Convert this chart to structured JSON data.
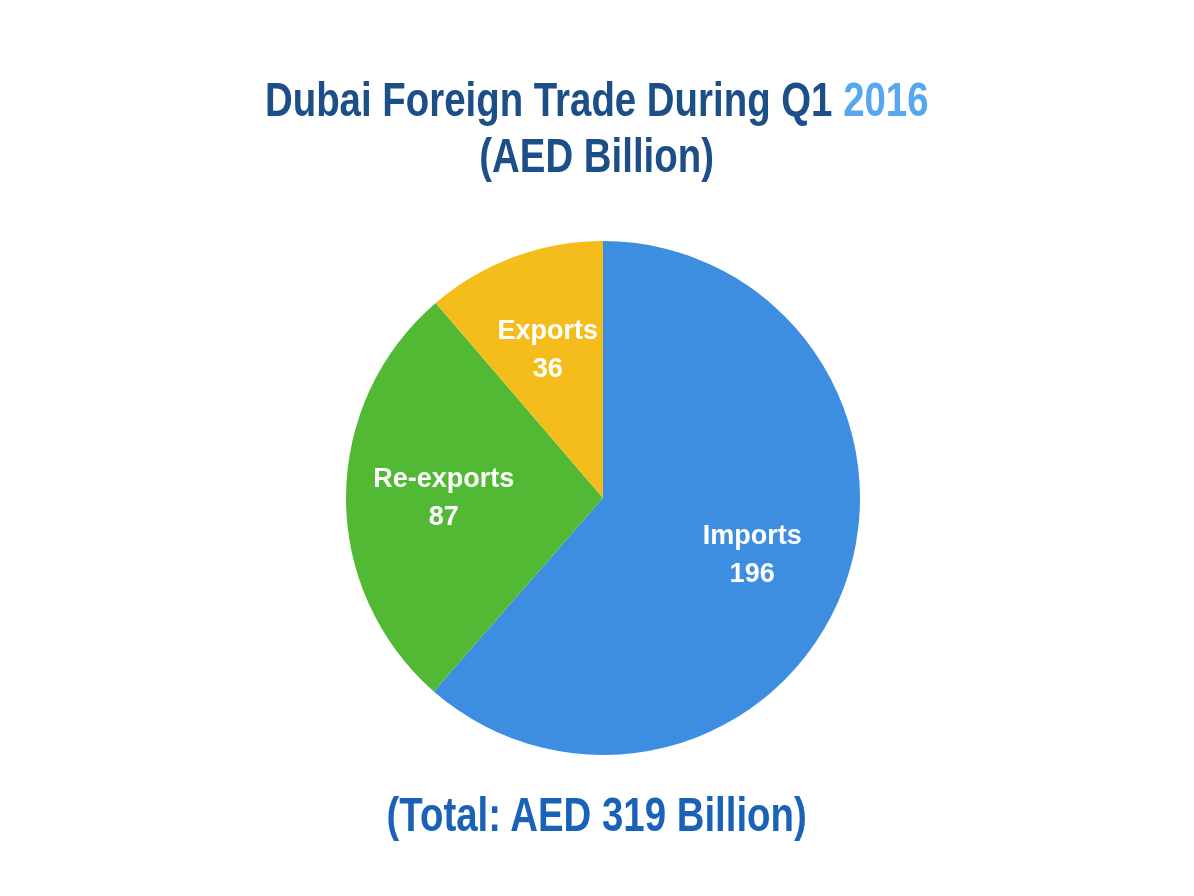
{
  "chart_data": {
    "type": "pie",
    "title": "Dubai Foreign Trade During Q1 2016",
    "subtitle": "(AED Billion)",
    "annotations": [
      "(Total: AED 319 Billion)"
    ],
    "categories": [
      "Imports",
      "Re-exports",
      "Exports"
    ],
    "values": [
      196,
      87,
      36
    ],
    "colors": [
      "#3d8ee0",
      "#52b935",
      "#f5bd1c"
    ],
    "data_labels": true
  }
}
